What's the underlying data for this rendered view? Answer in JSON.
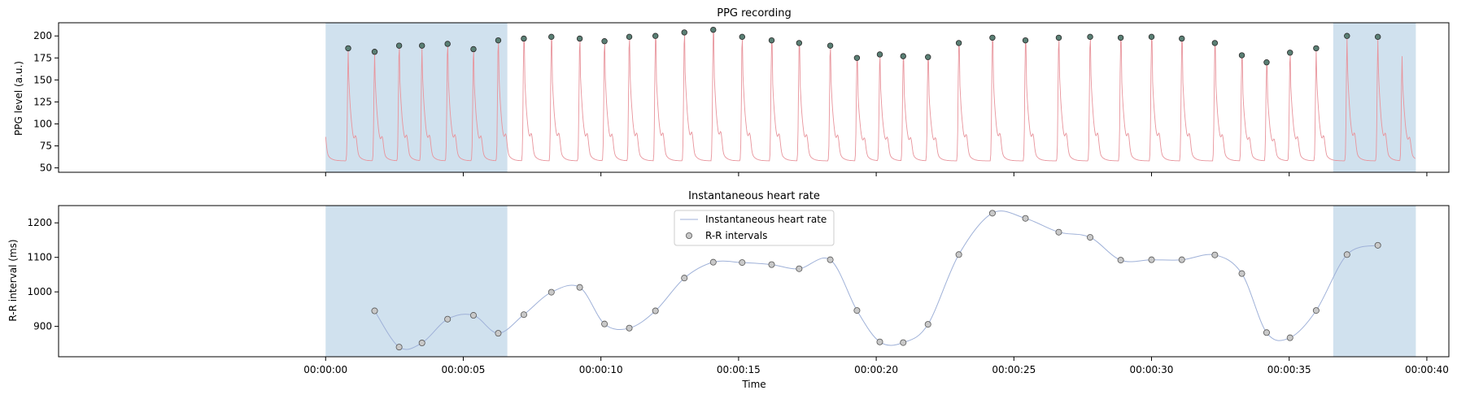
{
  "colors": {
    "shade": "#d0e1ee",
    "ppg_line": "#e8949c",
    "peak_fill": "#5a7f74",
    "peak_edge": "#2a2a2a",
    "hr_line": "#9fb1d8",
    "rr_fill": "#c8c8c8",
    "rr_edge": "#555555",
    "axis": "#000000",
    "legend_border": "#cccccc"
  },
  "chart_data": [
    {
      "type": "line",
      "title": "PPG recording",
      "ylabel": "PPG level (a.u.)",
      "xlabel": "",
      "xlim": [
        -9.7,
        40.8
      ],
      "ylim": [
        45,
        215
      ],
      "yticks": [
        50,
        75,
        100,
        125,
        150,
        175,
        200
      ],
      "xticks_seconds": [
        0,
        5,
        10,
        15,
        20,
        25,
        30,
        35,
        40
      ],
      "grid": false,
      "shaded_regions": [
        [
          0.0,
          6.6
        ],
        [
          36.6,
          39.6
        ]
      ],
      "series": [
        {
          "kind": "waveform",
          "beats": [
            0.82,
            1.78,
            2.67,
            3.5,
            4.43,
            5.37,
            6.27,
            7.2,
            8.2,
            9.23,
            10.13,
            11.03,
            11.98,
            13.03,
            14.08,
            15.13,
            16.2,
            17.2,
            18.33,
            19.3,
            20.13,
            20.98,
            21.88,
            23.0,
            24.22,
            25.42,
            26.63,
            27.77,
            28.88,
            30.0,
            31.1,
            32.3,
            33.28,
            34.18,
            35.03,
            35.98,
            37.1,
            38.22,
            39.1
          ],
          "peaks": [
            186,
            182,
            189,
            189,
            191,
            185,
            195,
            197,
            199,
            197,
            194,
            199,
            200,
            204,
            207,
            199,
            195,
            192,
            189,
            175,
            179,
            177,
            176,
            192,
            198,
            195,
            198,
            199,
            198,
            199,
            197,
            192,
            178,
            170,
            181,
            186,
            200,
            199,
            179
          ]
        },
        {
          "kind": "peaks",
          "x": [
            0.82,
            1.78,
            2.67,
            3.5,
            4.43,
            5.37,
            6.27,
            7.2,
            8.2,
            9.23,
            10.13,
            11.03,
            11.98,
            13.03,
            14.08,
            15.13,
            16.2,
            17.2,
            18.33,
            19.3,
            20.13,
            20.98,
            21.88,
            23.0,
            24.22,
            25.42,
            26.63,
            27.77,
            28.88,
            30.0,
            31.1,
            32.3,
            33.28,
            34.18,
            35.03,
            35.98,
            37.1,
            38.22
          ],
          "y": [
            186,
            182,
            189,
            189,
            191,
            185,
            195,
            197,
            199,
            197,
            194,
            199,
            200,
            204,
            207,
            199,
            195,
            192,
            189,
            175,
            179,
            177,
            176,
            192,
            198,
            195,
            198,
            199,
            198,
            199,
            197,
            192,
            178,
            170,
            181,
            186,
            200,
            199
          ]
        }
      ]
    },
    {
      "type": "line",
      "title": "Instantaneous heart rate",
      "ylabel": "R-R interval (ms)",
      "xlabel": "Time",
      "xlim": [
        -9.7,
        40.8
      ],
      "ylim": [
        812,
        1250
      ],
      "yticks": [
        900,
        1000,
        1100,
        1200
      ],
      "xticks_seconds": [
        0,
        5,
        10,
        15,
        20,
        25,
        30,
        35,
        40
      ],
      "xtick_labels": [
        "00:00:00",
        "00:00:05",
        "00:00:10",
        "00:00:15",
        "00:00:20",
        "00:00:25",
        "00:00:30",
        "00:00:35",
        "00:00:40"
      ],
      "grid": false,
      "legend_position": "top-center",
      "shaded_regions": [
        [
          0.0,
          6.6
        ],
        [
          36.6,
          39.6
        ]
      ],
      "series": [
        {
          "name": "Instantaneous heart rate",
          "kind": "line",
          "x": [
            1.78,
            2.67,
            3.5,
            4.43,
            5.37,
            6.27,
            7.2,
            8.2,
            9.23,
            10.13,
            11.03,
            11.98,
            13.03,
            14.08,
            15.13,
            16.2,
            17.2,
            18.33,
            19.3,
            20.13,
            20.98,
            21.88,
            23.0,
            24.22,
            25.42,
            26.63,
            27.77,
            28.88,
            30.0,
            31.1,
            32.3,
            33.28,
            34.18,
            35.03,
            35.98,
            37.1,
            38.22
          ],
          "y": [
            945,
            840,
            852,
            921,
            932,
            880,
            934,
            999,
            1013,
            907,
            895,
            945,
            1040,
            1086,
            1085,
            1079,
            1067,
            1093,
            946,
            855,
            853,
            906,
            1108,
            1228,
            1213,
            1173,
            1158,
            1092,
            1093,
            1093,
            1107,
            1053,
            882,
            867,
            946,
            1108,
            1135
          ]
        },
        {
          "name": "R-R intervals",
          "kind": "scatter",
          "x": [
            1.78,
            2.67,
            3.5,
            4.43,
            5.37,
            6.27,
            7.2,
            8.2,
            9.23,
            10.13,
            11.03,
            11.98,
            13.03,
            14.08,
            15.13,
            16.2,
            17.2,
            18.33,
            19.3,
            20.13,
            20.98,
            21.88,
            23.0,
            24.22,
            25.42,
            26.63,
            27.77,
            28.88,
            30.0,
            31.1,
            32.3,
            33.28,
            34.18,
            35.03,
            35.98,
            37.1,
            38.22
          ],
          "y": [
            945,
            840,
            852,
            921,
            932,
            880,
            934,
            999,
            1013,
            907,
            895,
            945,
            1040,
            1086,
            1085,
            1079,
            1067,
            1093,
            946,
            855,
            853,
            906,
            1108,
            1228,
            1213,
            1173,
            1158,
            1092,
            1093,
            1093,
            1107,
            1053,
            882,
            867,
            946,
            1108,
            1135
          ]
        }
      ]
    }
  ]
}
